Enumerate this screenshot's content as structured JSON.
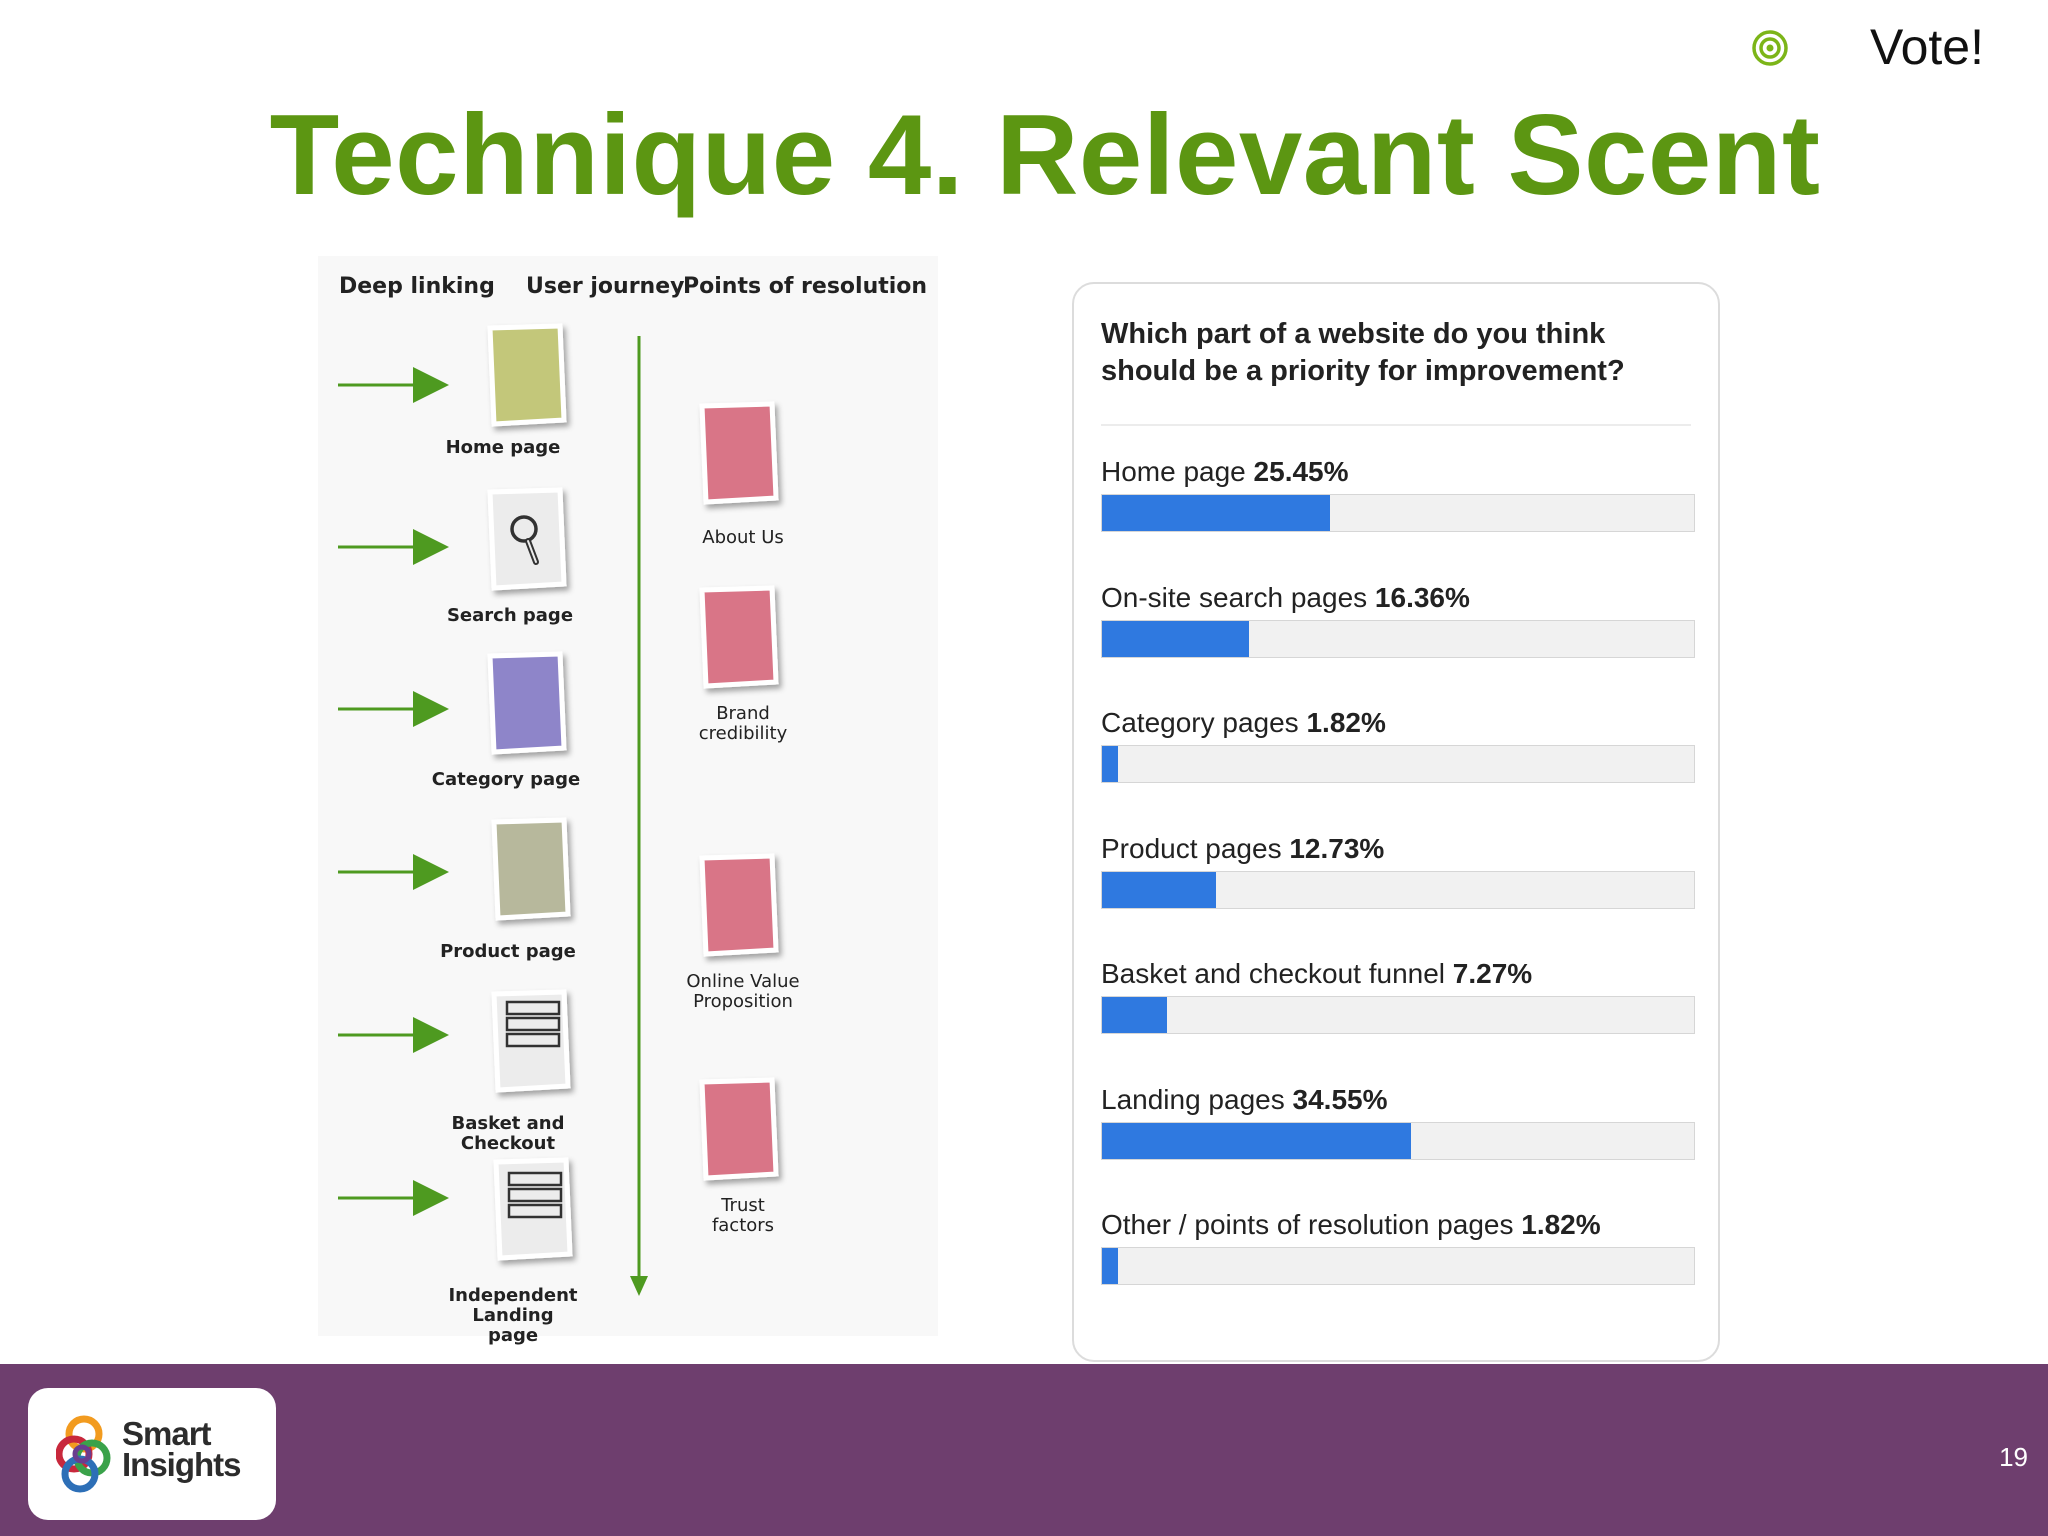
{
  "header": {
    "vote_label": "Vote!",
    "title": "Technique 4. Relevant Scent"
  },
  "diagram": {
    "col_headers": [
      "Deep linking",
      "User journey",
      "Points of resolution"
    ],
    "page_labels": [
      "Home page",
      "Search page",
      "Category page",
      "Product page",
      "Basket and Checkout",
      "Independent Landing page"
    ],
    "resolution_labels": [
      "About Us",
      "Brand credibility",
      "Online Value Proposition",
      "Trust factors"
    ]
  },
  "poll": {
    "question": "Which part of a website do you think should be a priority for improvement?",
    "options": [
      {
        "label": "Home page",
        "pct": "25.45%"
      },
      {
        "label": "On-site search pages",
        "pct": "16.36%"
      },
      {
        "label": "Category pages",
        "pct": "1.82%"
      },
      {
        "label": "Product pages",
        "pct": "12.73%"
      },
      {
        "label": "Basket and checkout funnel",
        "pct": "7.27%"
      },
      {
        "label": "Landing pages",
        "pct": "34.55%"
      },
      {
        "label": "Other / points of resolution pages",
        "pct": "1.82%"
      }
    ]
  },
  "chart_data": {
    "type": "bar",
    "title": "Which part of a website do you think should be a priority for improvement?",
    "categories": [
      "Home page",
      "On-site search pages",
      "Category pages",
      "Product pages",
      "Basket and checkout funnel",
      "Landing pages",
      "Other / points of resolution pages"
    ],
    "values": [
      25.45,
      16.36,
      1.82,
      12.73,
      7.27,
      34.55,
      1.82
    ],
    "xlim": [
      0,
      100
    ],
    "orientation": "horizontal",
    "bar_color": "#2f79e0"
  },
  "colors": {
    "title": "#5c9612",
    "footer": "#6e3e6e",
    "bar": "#2f79e0"
  },
  "footer": {
    "logo_text_1": "Smart",
    "logo_text_2": "Insights",
    "page_number": "19"
  }
}
